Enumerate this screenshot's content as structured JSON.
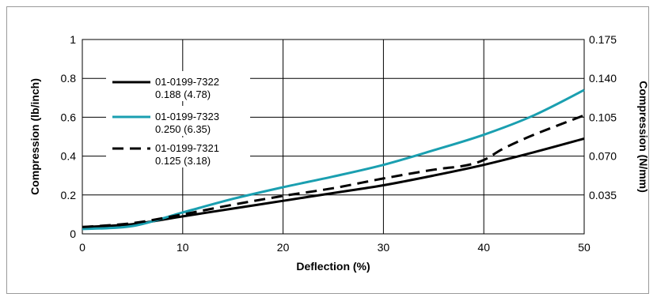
{
  "chart_data": {
    "type": "line",
    "title": "",
    "xlabel": "Deflection (%)",
    "ylabel": "Compression (lb/inch)",
    "y2label": "Compression (N/mm)",
    "xlim": [
      0,
      50
    ],
    "ylim": [
      0,
      1
    ],
    "y2lim": [
      0,
      0.175
    ],
    "xticks": [
      0,
      10,
      20,
      30,
      40,
      50
    ],
    "yticks": [
      "0",
      "0.2",
      "0.4",
      "0.6",
      "0.8",
      "1"
    ],
    "y2ticks": [
      "0.035",
      "0.070",
      "0.105",
      "0.140",
      "0.175"
    ],
    "grid": true,
    "legend_position": "top-left",
    "series": [
      {
        "name": "01-0199-7322",
        "sub": "0.188 (4.78)",
        "color": "#000000",
        "style": "solid",
        "x": [
          0,
          5,
          10,
          15,
          20,
          25,
          30,
          35,
          40,
          45,
          50
        ],
        "y": [
          0.035,
          0.05,
          0.09,
          0.13,
          0.17,
          0.21,
          0.25,
          0.3,
          0.355,
          0.42,
          0.49
        ]
      },
      {
        "name": "01-0199-7323",
        "sub": "0.250 (6.35)",
        "color": "#1a9fb0",
        "style": "solid",
        "x": [
          0,
          5,
          10,
          15,
          20,
          25,
          30,
          35,
          40,
          45,
          50
        ],
        "y": [
          0.025,
          0.04,
          0.11,
          0.18,
          0.24,
          0.295,
          0.355,
          0.43,
          0.51,
          0.61,
          0.74
        ]
      },
      {
        "name": "01-0199-7321",
        "sub": "0.125 (3.18)",
        "color": "#000000",
        "style": "dashed",
        "x": [
          0,
          5,
          10,
          15,
          20,
          25,
          30,
          35,
          38,
          40,
          42,
          45,
          50
        ],
        "y": [
          0.035,
          0.055,
          0.1,
          0.15,
          0.195,
          0.235,
          0.285,
          0.33,
          0.35,
          0.38,
          0.44,
          0.51,
          0.61
        ]
      }
    ]
  }
}
